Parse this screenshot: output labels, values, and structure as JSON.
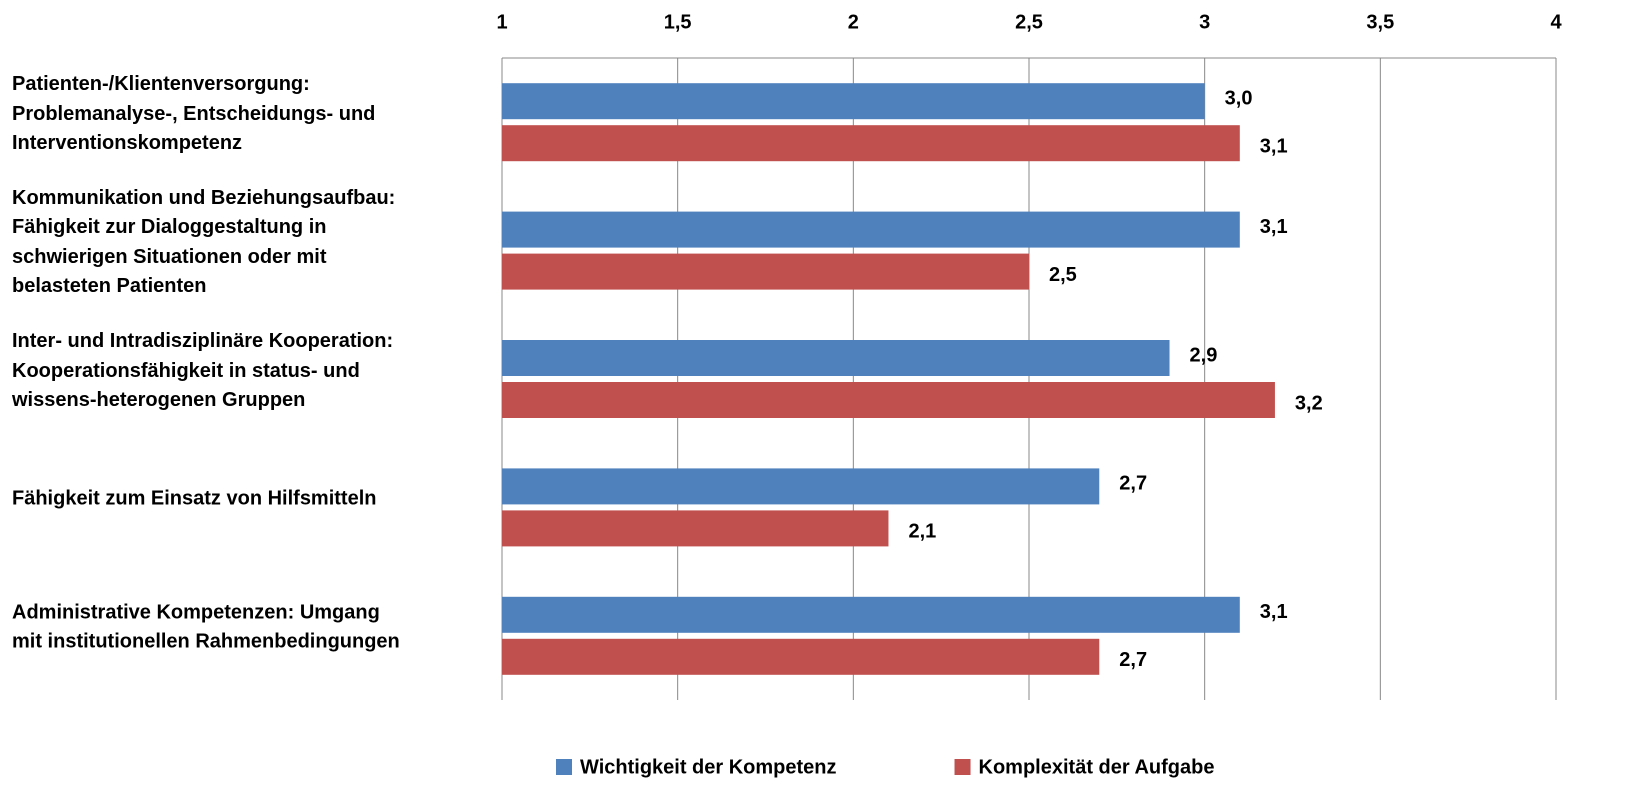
{
  "chart_data": {
    "type": "bar",
    "orientation": "horizontal",
    "categories": [
      "Patienten-/Klientenversorgung:\nProblemanalyse-, Entscheidungs- und\nInterventionskompetenz",
      "Kommunikation und Beziehungsaufbau:\nFähigkeit zur Dialoggestaltung in\nschwierigen Situationen oder mit\nbelasteten Patienten",
      "Inter- und Intradisziplinäre Kooperation:\nKooperationsfähigkeit in status-  und\nwissens-heterogenen Gruppen",
      "Fähigkeit zum Einsatz von Hilfsmitteln",
      "Administrative Kompetenzen: Umgang\nmit institutionellen Rahmenbedingungen"
    ],
    "series": [
      {
        "name": "Wichtigkeit der Kompetenz",
        "color": "#4f81bd",
        "values": [
          3.0,
          3.1,
          2.9,
          2.7,
          3.1
        ],
        "value_labels": [
          "3,0",
          "3,1",
          "2,9",
          "2,7",
          "3,1"
        ]
      },
      {
        "name": "Komplexität der Aufgabe",
        "color": "#c0504d",
        "values": [
          3.1,
          2.5,
          3.2,
          2.1,
          2.7
        ],
        "value_labels": [
          "3,1",
          "2,5",
          "3,2",
          "2,1",
          "2,7"
        ]
      }
    ],
    "xlim": [
      1,
      4
    ],
    "xticks": [
      1,
      {
        "value": 1.5,
        "label": "1,5"
      },
      2,
      {
        "value": 2.5,
        "label": "2,5"
      },
      3,
      {
        "value": 3.5,
        "label": "3,5"
      },
      4
    ],
    "grid": true,
    "legend": "bottom"
  }
}
